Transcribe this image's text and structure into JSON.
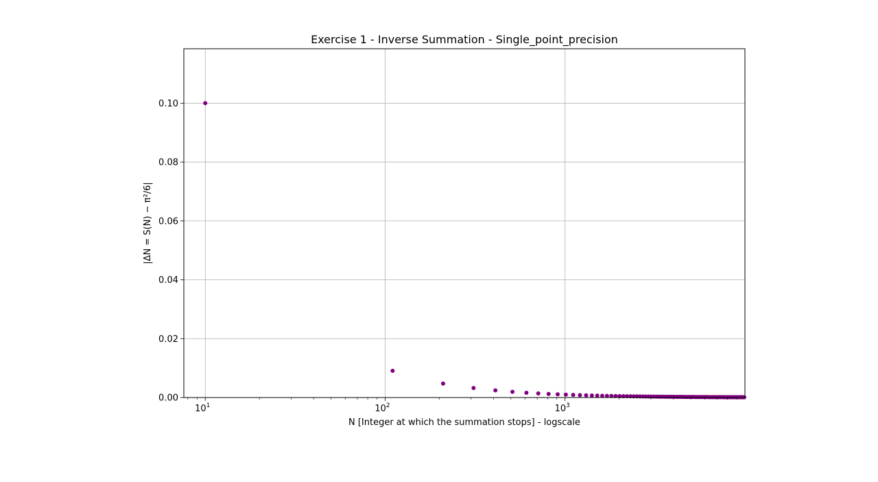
{
  "chart_data": {
    "type": "scatter",
    "title": "Exercise 1 - Inverse Summation - Single_point_precision",
    "xlabel": "N [Integer at which the summation stops] - logscale",
    "ylabel": "|ΔN = S(N) − π²/6|",
    "xscale": "log",
    "xlim": [
      7.6,
      10000
    ],
    "ylim": [
      0,
      0.1185
    ],
    "grid": true,
    "marker_color": "#800080",
    "x_ticks": [
      {
        "value": 10,
        "base": "10",
        "exp": "1"
      },
      {
        "value": 100,
        "base": "10",
        "exp": "2"
      },
      {
        "value": 1000,
        "base": "10",
        "exp": "3"
      }
    ],
    "y_ticks": [
      {
        "value": 0.0,
        "label": "0.00"
      },
      {
        "value": 0.02,
        "label": "0.02"
      },
      {
        "value": 0.04,
        "label": "0.04"
      },
      {
        "value": 0.06,
        "label": "0.06"
      },
      {
        "value": 0.08,
        "label": "0.08"
      },
      {
        "value": 0.1,
        "label": "0.10"
      }
    ],
    "series": [
      {
        "x_start": 10,
        "x_end": 10000,
        "x_step": 100,
        "y_rule": "1/N",
        "sample_points": [
          {
            "x": 10,
            "y": 0.0952
          },
          {
            "x": 110,
            "y": 0.009
          },
          {
            "x": 210,
            "y": 0.0047
          },
          {
            "x": 310,
            "y": 0.0032
          },
          {
            "x": 410,
            "y": 0.0024
          }
        ]
      }
    ]
  }
}
